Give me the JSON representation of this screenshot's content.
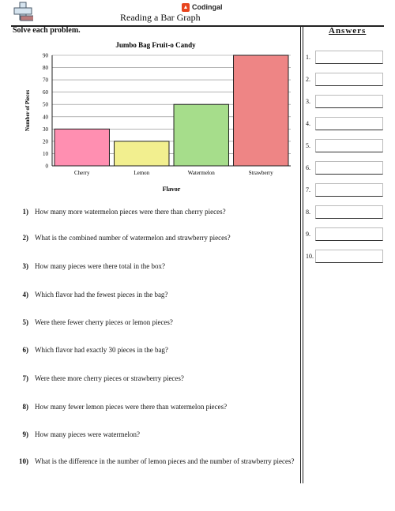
{
  "header": {
    "brand": "Codingal",
    "title": "Reading a Bar Graph",
    "instructions": "Solve each problem.",
    "answers_heading": "Answers"
  },
  "chart_data": {
    "type": "bar",
    "title": "Jumbo Bag Fruit-o Candy",
    "xlabel": "Flavor",
    "ylabel": "Number of Pieces",
    "categories": [
      "Cherry",
      "Lemon",
      "Watermelon",
      "Strawberry"
    ],
    "values": [
      30,
      20,
      50,
      90
    ],
    "colors": [
      "#ff8fb1",
      "#f2ef8f",
      "#a6dd8b",
      "#ee8585"
    ],
    "ylim": [
      0,
      90
    ],
    "yticks": [
      0,
      10,
      20,
      30,
      40,
      50,
      60,
      70,
      80,
      90
    ],
    "grid": true
  },
  "questions": [
    {
      "num": "1)",
      "text": "How many more watermelon pieces were there than cherry pieces?"
    },
    {
      "num": "2)",
      "text": "What is the combined number of watermelon and strawberry pieces?"
    },
    {
      "num": "3)",
      "text": "How many pieces were there total in the box?"
    },
    {
      "num": "4)",
      "text": "Which flavor had the fewest pieces in the bag?"
    },
    {
      "num": "5)",
      "text": "Were there fewer cherry pieces or lemon pieces?"
    },
    {
      "num": "6)",
      "text": "Which flavor had exactly 30 pieces in the bag?"
    },
    {
      "num": "7)",
      "text": "Were there more cherry pieces or strawberry pieces?"
    },
    {
      "num": "8)",
      "text": "How many fewer lemon pieces were there than watermelon pieces?"
    },
    {
      "num": "9)",
      "text": "How many pieces were watermelon?"
    },
    {
      "num": "10)",
      "text": "What is the difference in the number of lemon pieces and the number of strawberry pieces?"
    }
  ],
  "answers": [
    "1.",
    "2.",
    "3.",
    "4.",
    "5.",
    "6.",
    "7.",
    "8.",
    "9.",
    "10."
  ]
}
